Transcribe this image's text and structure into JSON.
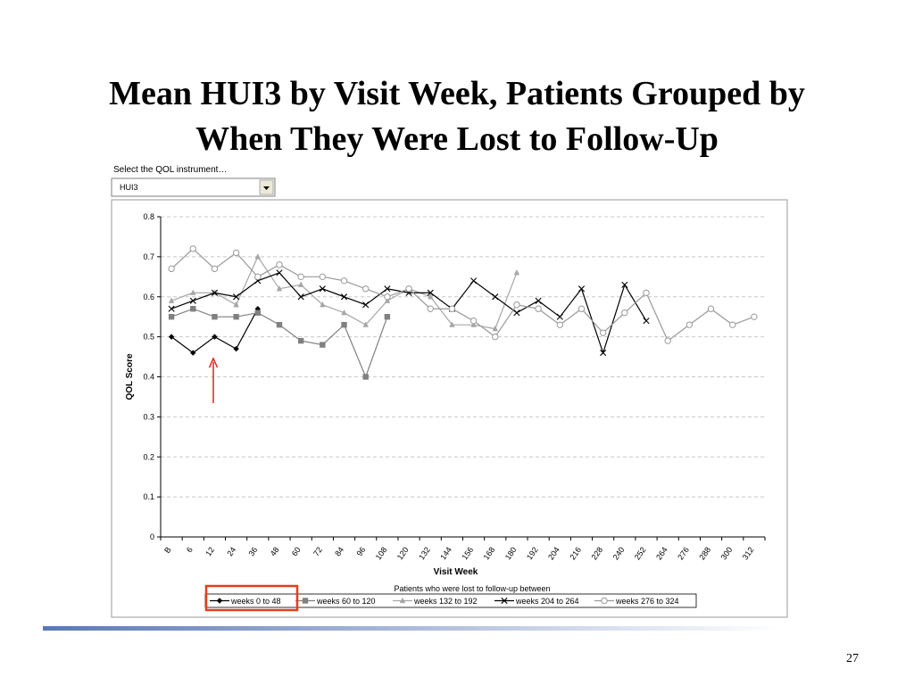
{
  "slide": {
    "title": [
      "Mean HUI3 by Visit Week, Patients Grouped by",
      "When They Were Lost to Follow-Up"
    ],
    "selector_label": "Select the QOL instrument…",
    "selector_value": "HUI3",
    "page_number": "27"
  },
  "chart_data": {
    "type": "line",
    "x_label": "Visit Week",
    "y_label": "QOL Score",
    "legend_title": "Patients who were lost to follow-up between",
    "categories": [
      "B",
      "6",
      "12",
      "24",
      "36",
      "48",
      "60",
      "72",
      "84",
      "96",
      "108",
      "120",
      "132",
      "144",
      "156",
      "168",
      "180",
      "192",
      "204",
      "216",
      "228",
      "240",
      "252",
      "264",
      "276",
      "288",
      "300",
      "312"
    ],
    "ylim": [
      0,
      0.8
    ],
    "yticks": [
      0,
      0.1,
      0.2,
      0.3,
      0.4,
      0.5,
      0.6,
      0.7,
      0.8
    ],
    "grid": true,
    "legend": "bottom",
    "series": [
      {
        "name": "weeks 0 to 48",
        "color": "#000000",
        "marker": "diamond",
        "values": [
          0.5,
          0.46,
          0.5,
          0.47,
          0.57,
          null,
          null,
          null,
          null,
          null,
          null,
          null,
          null,
          null,
          null,
          null,
          null,
          null,
          null,
          null,
          null,
          null,
          null,
          null,
          null,
          null,
          null,
          null
        ]
      },
      {
        "name": "weeks 60 to 120",
        "color": "#808080",
        "marker": "square",
        "values": [
          0.55,
          0.57,
          0.55,
          0.55,
          0.56,
          0.53,
          0.49,
          0.48,
          0.53,
          0.4,
          0.55,
          null,
          null,
          null,
          null,
          null,
          null,
          null,
          null,
          null,
          null,
          null,
          null,
          null,
          null,
          null,
          null,
          null
        ]
      },
      {
        "name": "weeks 132 to 192",
        "color": "#a6a6a6",
        "marker": "triangle",
        "values": [
          0.59,
          0.61,
          0.61,
          0.58,
          0.7,
          0.62,
          0.63,
          0.58,
          0.56,
          0.53,
          0.59,
          0.62,
          0.6,
          0.53,
          0.53,
          0.52,
          0.66,
          null,
          null,
          null,
          null,
          null,
          null,
          null,
          null,
          null,
          null,
          null
        ]
      },
      {
        "name": "weeks 204 to 264",
        "color": "#000000",
        "marker": "x",
        "values": [
          0.57,
          0.59,
          0.61,
          0.6,
          0.64,
          0.66,
          0.6,
          0.62,
          0.6,
          0.58,
          0.62,
          0.61,
          0.61,
          0.57,
          0.64,
          0.6,
          0.56,
          0.59,
          0.55,
          0.62,
          0.46,
          0.63,
          0.54,
          null,
          null,
          null,
          null,
          null
        ]
      },
      {
        "name": "weeks 276 to 324",
        "color": "#999999",
        "marker": "circle",
        "values": [
          0.67,
          0.72,
          0.67,
          0.71,
          0.65,
          0.68,
          0.65,
          0.65,
          0.64,
          0.62,
          0.6,
          0.62,
          0.57,
          0.57,
          0.54,
          0.5,
          0.58,
          0.57,
          0.53,
          0.57,
          0.51,
          0.56,
          0.61,
          0.49,
          0.53,
          0.57,
          0.53,
          0.55
        ]
      }
    ]
  }
}
